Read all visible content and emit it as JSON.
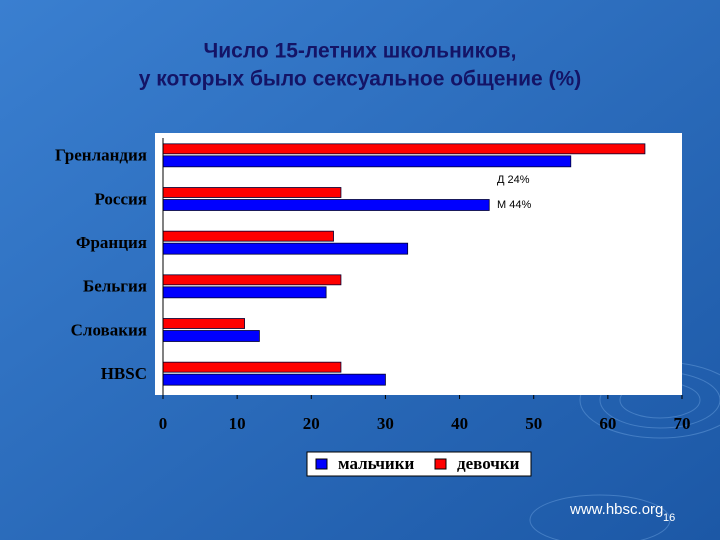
{
  "chart_data": {
    "type": "hbar",
    "title": [
      "Число 15-летних школьников,",
      "у которых было сексуальное общение (%)"
    ],
    "categories": [
      "Гренландия",
      "Россия",
      "Франция",
      "Бельгия",
      "Словакия",
      "HBSC"
    ],
    "series": [
      {
        "name": "мальчики",
        "color": "#0000ff",
        "values": [
          55,
          44,
          33,
          22,
          13,
          30
        ]
      },
      {
        "name": "девочки",
        "color": "#ff0000",
        "values": [
          65,
          24,
          23,
          24,
          11,
          24
        ]
      }
    ],
    "xlim": [
      0,
      70
    ],
    "xticks": [
      0,
      10,
      20,
      30,
      40,
      50,
      60,
      70
    ],
    "annotations": [
      "Д 24%",
      "М 44%"
    ],
    "legend": "bottom"
  },
  "footer": {
    "url": "www.hbsc.org",
    "page": 16
  }
}
